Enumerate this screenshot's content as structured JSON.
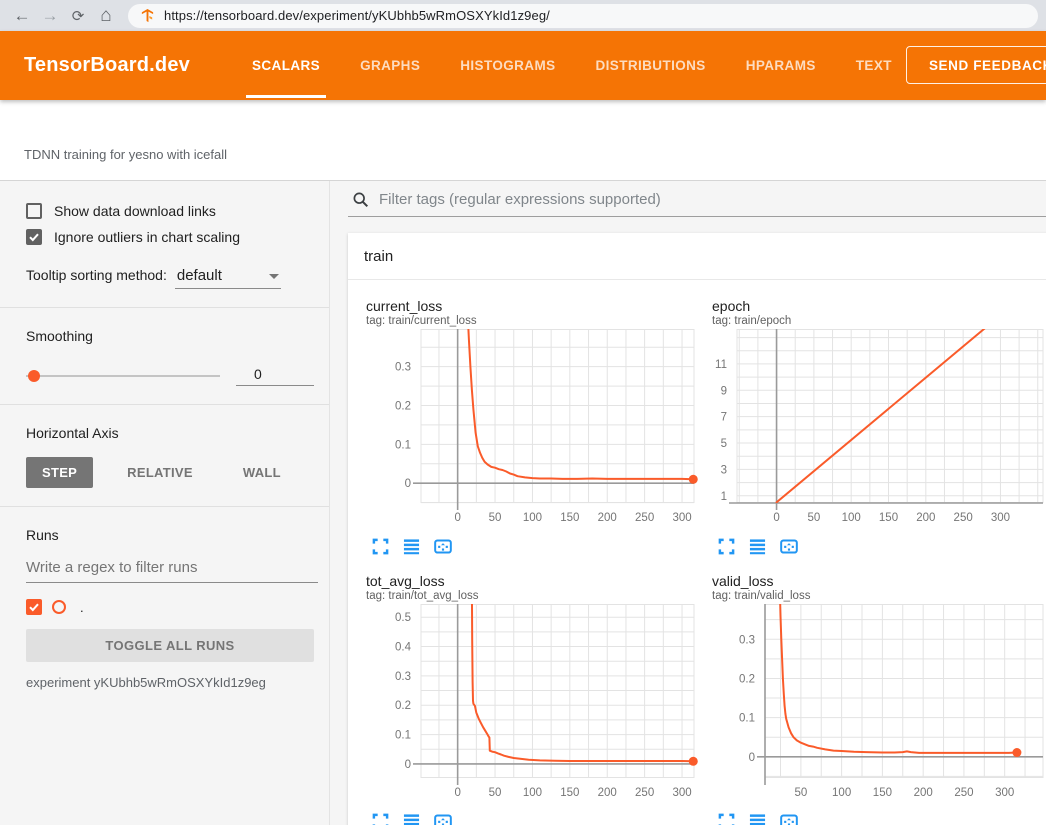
{
  "browser": {
    "url": "https://tensorboard.dev/experiment/yKUbhb5wRmOSXYkId1z9eg/",
    "back_icon": "back-arrow",
    "forward_icon": "forward-arrow",
    "reload_icon": "reload",
    "home_icon": "home",
    "favicon": "tensorboard-logo"
  },
  "header": {
    "logo": "TensorBoard.dev",
    "tabs": [
      {
        "label": "SCALARS",
        "active": true
      },
      {
        "label": "GRAPHS",
        "active": false
      },
      {
        "label": "HISTOGRAMS",
        "active": false
      },
      {
        "label": "DISTRIBUTIONS",
        "active": false
      },
      {
        "label": "HPARAMS",
        "active": false
      },
      {
        "label": "TEXT",
        "active": false
      }
    ],
    "feedback_button": "SEND FEEDBACK",
    "accent_color": "#f57405"
  },
  "subheader": {
    "experiment_title": "TDNN training for yesno with icefall"
  },
  "sidebar": {
    "show_download": {
      "label": "Show data download links",
      "checked": false
    },
    "ignore_outliers": {
      "label": "Ignore outliers in chart scaling",
      "checked": true
    },
    "tooltip_sorting": {
      "label": "Tooltip sorting method:",
      "value": "default"
    },
    "smoothing": {
      "label": "Smoothing",
      "value": "0"
    },
    "horizontal_axis": {
      "label": "Horizontal Axis",
      "options": [
        "STEP",
        "RELATIVE",
        "WALL"
      ],
      "selected": "STEP"
    },
    "runs": {
      "label": "Runs",
      "filter_placeholder": "Write a regex to filter runs",
      "run_item": {
        "name": ".",
        "checked": true,
        "color": "#fa5b2a"
      },
      "toggle_button": "TOGGLE ALL RUNS",
      "experiment_note": "experiment yKUbhb5wRmOSXYkId1z9eg"
    }
  },
  "main": {
    "filter_placeholder": "Filter tags (regular expressions supported)",
    "section_title": "train",
    "chart_toolbar_icons": [
      "fullscreen",
      "log-scale",
      "fit-domain-to-data"
    ]
  },
  "colors": {
    "run_color": "#fa5b2a",
    "icon_blue": "#2196f3",
    "grid": "#e3e3e3",
    "dark_axis": "#9a9a9a",
    "tick_label": "#757575"
  },
  "chart_data": [
    {
      "type": "line",
      "title": "current_loss",
      "tag": "tag: train/current_loss",
      "xlabel": "step",
      "ylabel": "",
      "xlim": [
        -49,
        316
      ],
      "ylim": [
        -0.051,
        0.397
      ],
      "xticks": [
        0,
        50,
        100,
        150,
        200,
        250,
        300
      ],
      "xminor": 25,
      "yticks": [
        0,
        0.1,
        0.2,
        0.3
      ],
      "yminor": 0.05,
      "zero_x": true,
      "zero_y": true,
      "dark_bottom": false,
      "dark_left": false,
      "plot_left": 65,
      "plot_right": 338,
      "legend": "off",
      "series": [
        {
          "name": ".",
          "color": "#fa5b2a",
          "points": [
            [
              13,
              0.45
            ],
            [
              15,
              0.37
            ],
            [
              17,
              0.3
            ],
            [
              19,
              0.24
            ],
            [
              21,
              0.19
            ],
            [
              24,
              0.13
            ],
            [
              27,
              0.095
            ],
            [
              30,
              0.078
            ],
            [
              33,
              0.065
            ],
            [
              36,
              0.055
            ],
            [
              40,
              0.048
            ],
            [
              45,
              0.042
            ],
            [
              50,
              0.04
            ],
            [
              55,
              0.036
            ],
            [
              60,
              0.034
            ],
            [
              65,
              0.03
            ],
            [
              70,
              0.025
            ],
            [
              75,
              0.022
            ],
            [
              80,
              0.018
            ],
            [
              90,
              0.015
            ],
            [
              100,
              0.013
            ],
            [
              110,
              0.012
            ],
            [
              125,
              0.012
            ],
            [
              140,
              0.011
            ],
            [
              160,
              0.011
            ],
            [
              180,
              0.012
            ],
            [
              200,
              0.011
            ],
            [
              220,
              0.011
            ],
            [
              240,
              0.011
            ],
            [
              260,
              0.011
            ],
            [
              280,
              0.011
            ],
            [
              300,
              0.011
            ],
            [
              315,
              0.01
            ]
          ],
          "final_point": [
            315,
            0.01
          ]
        }
      ]
    },
    {
      "type": "line",
      "title": "epoch",
      "tag": "tag: train/epoch",
      "xlabel": "step",
      "ylabel": "",
      "xlim": [
        -53,
        357
      ],
      "ylim": [
        0.45,
        13.65
      ],
      "xticks": [
        0,
        50,
        100,
        150,
        200,
        250,
        300
      ],
      "xminor": 25,
      "yticks": [
        1,
        3,
        5,
        7,
        9,
        11
      ],
      "yminor": 1,
      "zero_x": true,
      "zero_y": false,
      "dark_bottom": true,
      "dark_left": false,
      "plot_left": 35,
      "plot_right": 341,
      "legend": "off",
      "series": [
        {
          "name": ".",
          "color": "#fa5b2a",
          "points": [
            [
              0,
              0.5
            ],
            [
              278,
              13.65
            ],
            [
              295,
              14.5
            ]
          ],
          "final_point": null
        }
      ]
    },
    {
      "type": "line",
      "title": "tot_avg_loss",
      "tag": "tag: train/tot_avg_loss",
      "xlabel": "step",
      "ylabel": "",
      "xlim": [
        -49,
        316
      ],
      "ylim": [
        -0.048,
        0.545
      ],
      "xticks": [
        0,
        50,
        100,
        150,
        200,
        250,
        300
      ],
      "xminor": 25,
      "yticks": [
        0,
        0.1,
        0.2,
        0.3,
        0.4,
        0.5
      ],
      "yminor": 0.05,
      "zero_x": true,
      "zero_y": true,
      "dark_bottom": false,
      "dark_left": false,
      "plot_left": 65,
      "plot_right": 338,
      "legend": "off",
      "series": [
        {
          "name": ".",
          "color": "#fa5b2a",
          "points": [
            [
              19,
              0.6
            ],
            [
              19.5,
              0.42
            ],
            [
              20,
              0.28
            ],
            [
              20.5,
              0.215
            ],
            [
              21,
              0.205
            ],
            [
              23,
              0.198
            ],
            [
              25,
              0.175
            ],
            [
              28,
              0.155
            ],
            [
              31,
              0.14
            ],
            [
              34,
              0.125
            ],
            [
              37,
              0.113
            ],
            [
              40,
              0.1
            ],
            [
              41.5,
              0.093
            ],
            [
              42.5,
              0.09
            ],
            [
              43,
              0.045
            ],
            [
              46,
              0.042
            ],
            [
              50,
              0.04
            ],
            [
              54,
              0.036
            ],
            [
              58,
              0.032
            ],
            [
              62,
              0.028
            ],
            [
              68,
              0.024
            ],
            [
              75,
              0.02
            ],
            [
              85,
              0.017
            ],
            [
              95,
              0.014
            ],
            [
              110,
              0.012
            ],
            [
              130,
              0.011
            ],
            [
              150,
              0.01
            ],
            [
              180,
              0.01
            ],
            [
              210,
              0.01
            ],
            [
              240,
              0.01
            ],
            [
              270,
              0.01
            ],
            [
              300,
              0.01
            ],
            [
              315,
              0.009
            ]
          ],
          "final_point": [
            315,
            0.009
          ]
        }
      ]
    },
    {
      "type": "line",
      "title": "valid_loss",
      "tag": "tag: train/valid_loss",
      "xlabel": "step",
      "ylabel": "",
      "xlim": [
        6,
        347
      ],
      "ylim": [
        -0.054,
        0.39
      ],
      "xticks": [
        50,
        100,
        150,
        200,
        250,
        300
      ],
      "xminor": 25,
      "yticks": [
        0,
        0.1,
        0.2,
        0.3
      ],
      "yminor": 0.05,
      "zero_x": false,
      "zero_y": true,
      "dark_bottom": false,
      "dark_left": true,
      "plot_left": 63,
      "plot_right": 341,
      "legend": "off",
      "series": [
        {
          "name": ".",
          "color": "#fa5b2a",
          "points": [
            [
              24,
              0.44
            ],
            [
              25,
              0.36
            ],
            [
              26,
              0.3
            ],
            [
              27,
              0.25
            ],
            [
              28,
              0.2
            ],
            [
              29,
              0.16
            ],
            [
              30,
              0.13
            ],
            [
              31,
              0.11
            ],
            [
              32,
              0.097
            ],
            [
              33,
              0.09
            ],
            [
              35,
              0.075
            ],
            [
              38,
              0.06
            ],
            [
              41,
              0.05
            ],
            [
              45,
              0.042
            ],
            [
              50,
              0.036
            ],
            [
              55,
              0.032
            ],
            [
              60,
              0.028
            ],
            [
              65,
              0.026
            ],
            [
              70,
              0.023
            ],
            [
              80,
              0.019
            ],
            [
              90,
              0.016
            ],
            [
              100,
              0.015
            ],
            [
              115,
              0.013
            ],
            [
              130,
              0.012
            ],
            [
              150,
              0.011
            ],
            [
              165,
              0.011
            ],
            [
              175,
              0.012
            ],
            [
              180,
              0.014
            ],
            [
              185,
              0.012
            ],
            [
              195,
              0.01
            ],
            [
              210,
              0.01
            ],
            [
              230,
              0.01
            ],
            [
              250,
              0.01
            ],
            [
              270,
              0.01
            ],
            [
              290,
              0.01
            ],
            [
              305,
              0.01
            ],
            [
              315,
              0.011
            ]
          ],
          "final_point": [
            315,
            0.011
          ]
        }
      ]
    }
  ]
}
